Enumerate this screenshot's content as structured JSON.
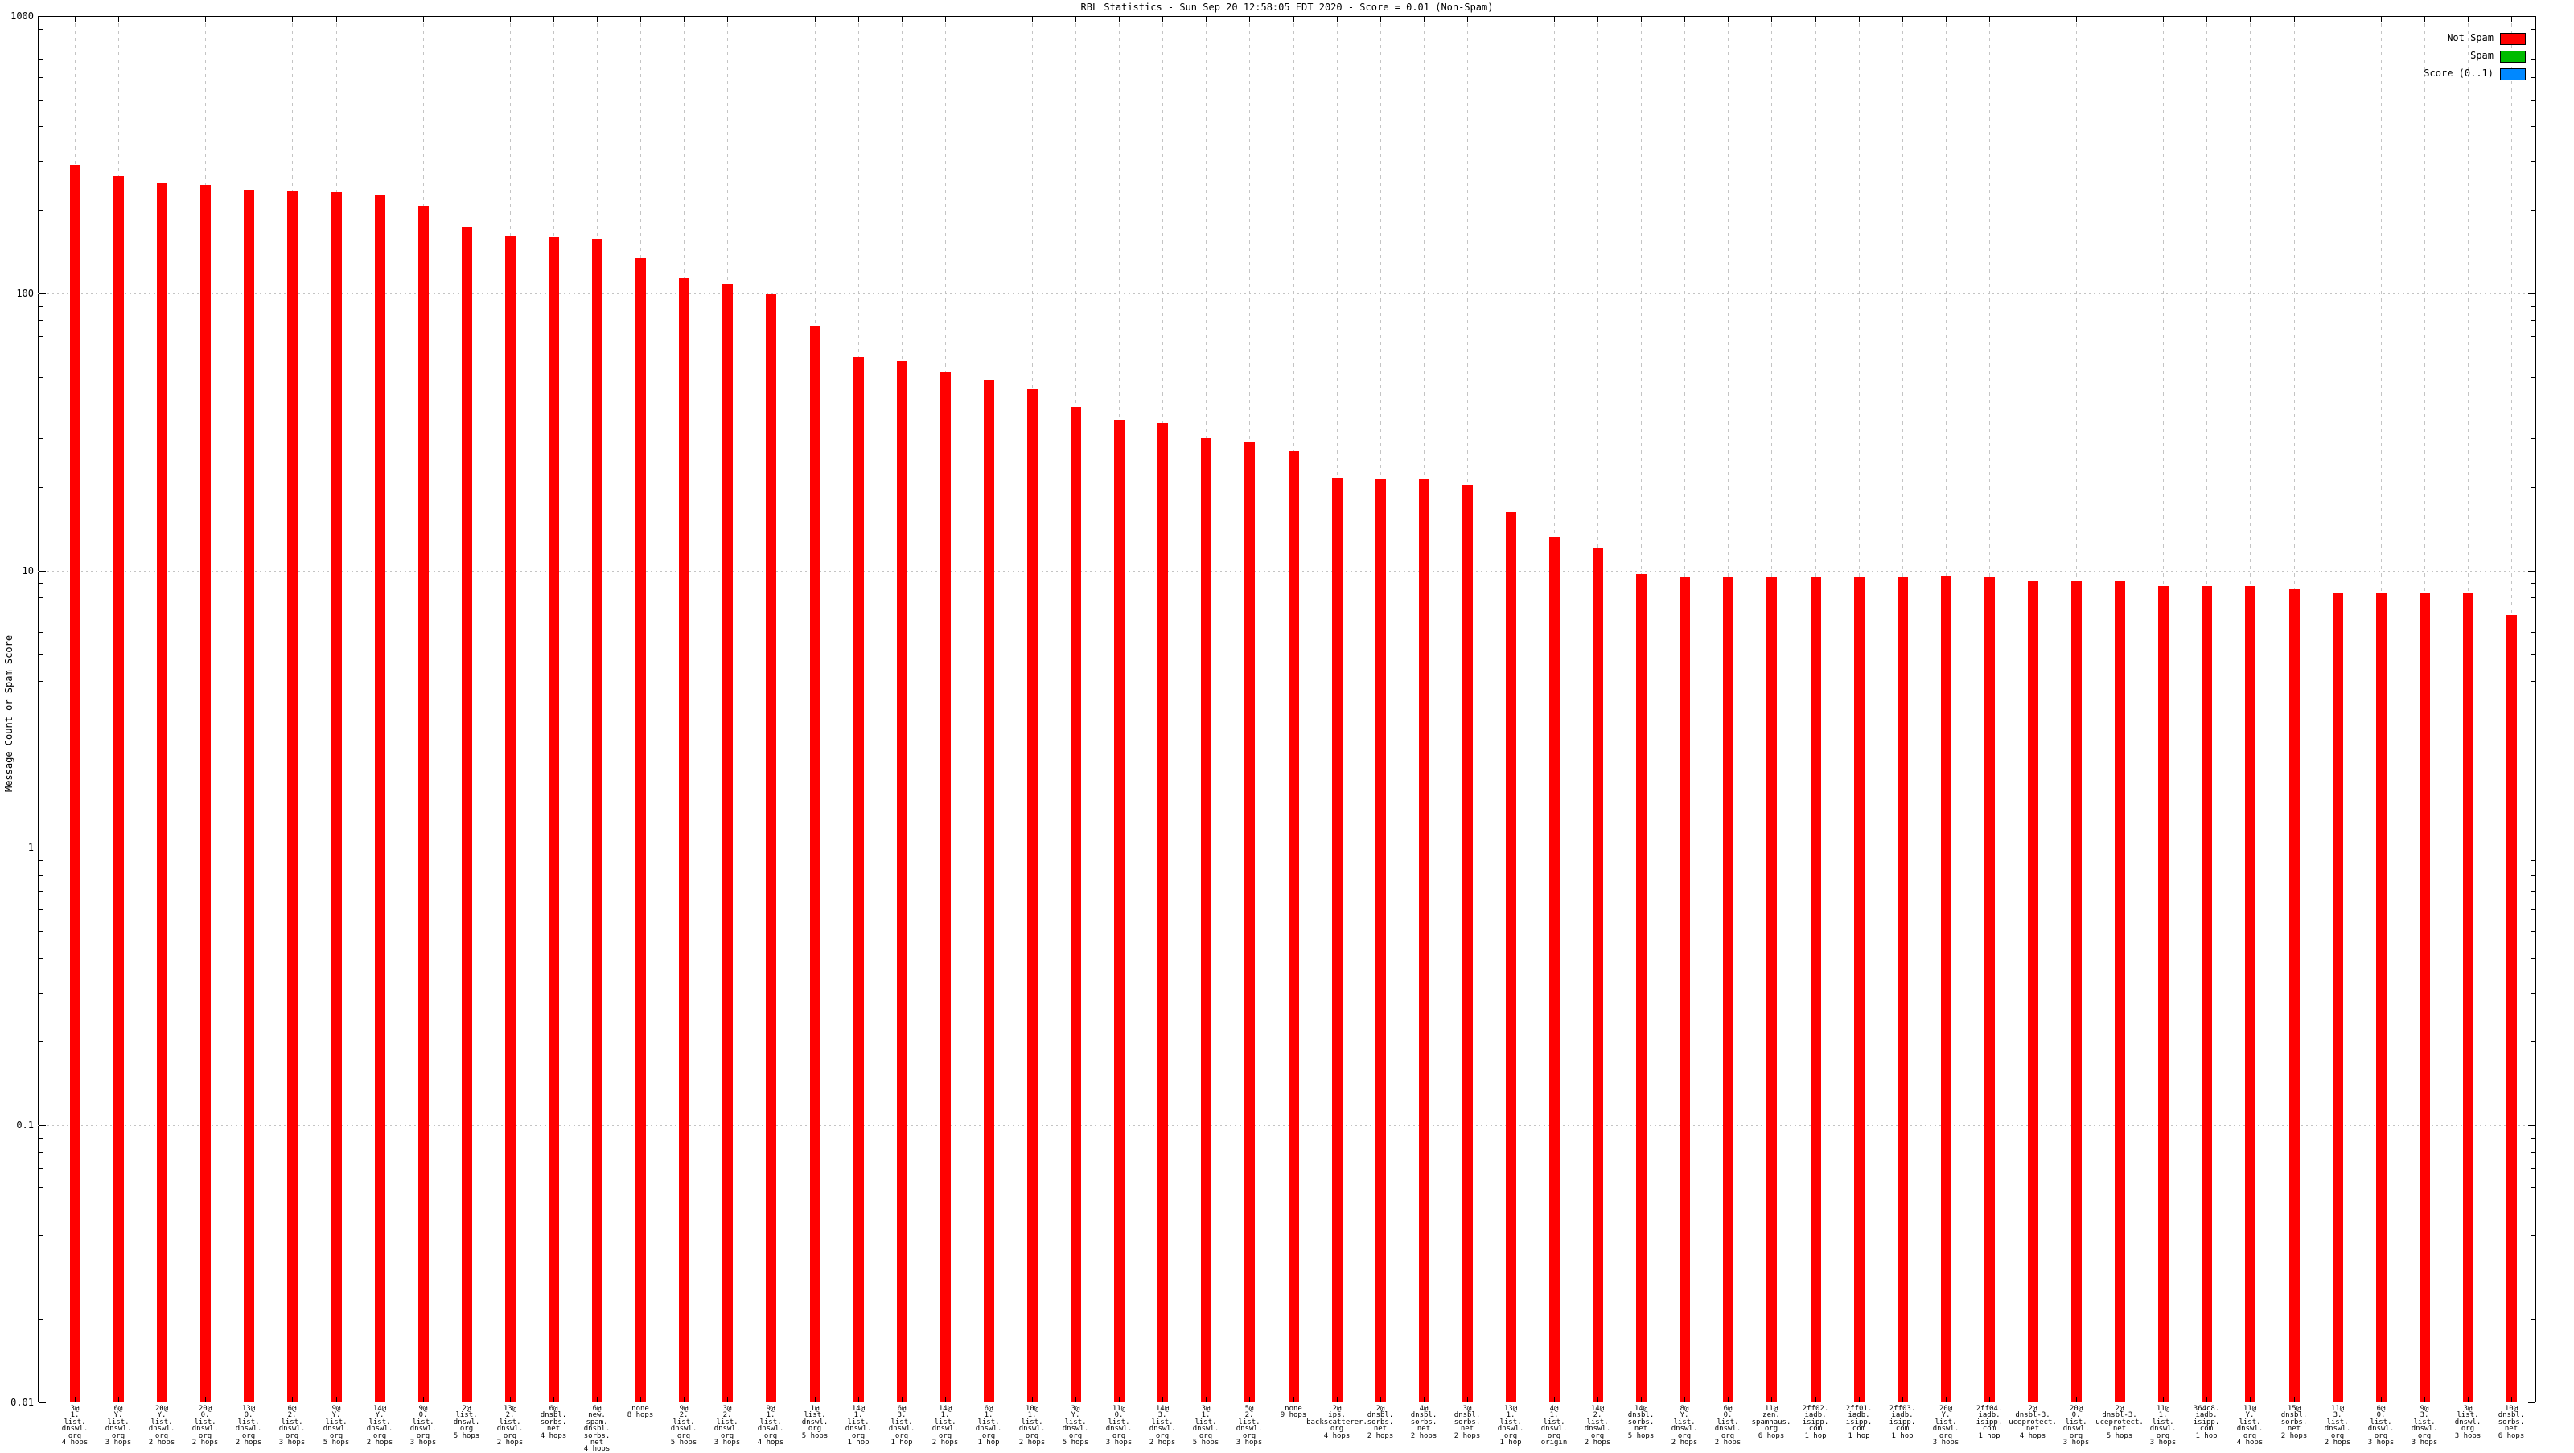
{
  "title": "RBL Statistics - Sun Sep 20 12:58:05 EDT 2020 - Score = 0.01 (Non-Spam)",
  "y_axis": {
    "label": "Message Count or Spam Score",
    "tick_labels": [
      "1000",
      "100",
      "10",
      "1",
      "0.1",
      "0.01"
    ]
  },
  "legend": {
    "position": "top-right",
    "items": [
      {
        "label": "Not Spam",
        "color": "#ff0000"
      },
      {
        "label": "Spam",
        "color": "#00bb00"
      },
      {
        "label": "Score (0..1)",
        "color": "#0088ff"
      }
    ]
  },
  "chart_data": {
    "type": "bar",
    "title": "RBL Statistics - Sun Sep 20 12:58:05 EDT 2020 - Score = 0.01 (Non-Spam)",
    "xlabel": "",
    "ylabel": "Message Count or Spam Score",
    "log_scale_y": true,
    "ylim": [
      0.01,
      1000
    ],
    "yticks": [
      1000,
      100,
      10,
      1,
      0.1,
      0.01
    ],
    "grid": true,
    "legend_position": "top-right",
    "bar_color": "#ff0000",
    "series_shown": "Not Spam",
    "categories": [
      [
        "3@",
        "1.",
        "list.",
        "dnswl.",
        "org",
        "4 hops"
      ],
      [
        "6@",
        "Y.",
        "list.",
        "dnswl.",
        "org",
        "3 hops"
      ],
      [
        "20@",
        "Y.",
        "list.",
        "dnswl.",
        "org",
        "2 hops"
      ],
      [
        "20@",
        "0.",
        "list.",
        "dnswl.",
        "org",
        "2 hops"
      ],
      [
        "13@",
        "0.",
        "list.",
        "dnswl.",
        "org",
        "2 hops"
      ],
      [
        "6@",
        "2.",
        "list.",
        "dnswl.",
        "org",
        "3 hops"
      ],
      [
        "9@",
        "Y.",
        "list.",
        "dnswl.",
        "org",
        "5 hops"
      ],
      [
        "14@",
        "Y.",
        "list.",
        "dnswl.",
        "org",
        "2 hops"
      ],
      [
        "9@",
        "0.",
        "list.",
        "dnswl.",
        "org",
        "3 hops"
      ],
      [
        "2@",
        "list.",
        "dnswl.",
        "org",
        "5 hops"
      ],
      [
        "13@",
        "2.",
        "list.",
        "dnswl.",
        "org",
        "2 hops"
      ],
      [
        "6@",
        "dnsbl.",
        "sorbs.",
        "net",
        "4 hops"
      ],
      [
        "6@",
        "new.",
        "spam.",
        "dnsbl.",
        "sorbs.",
        "net",
        "4 hops"
      ],
      [
        "none",
        "8 hops"
      ],
      [
        "9@",
        "2.",
        "list.",
        "dnswl.",
        "org",
        "5 hops"
      ],
      [
        "3@",
        "2.",
        "list.",
        "dnswl.",
        "org",
        "3 hops"
      ],
      [
        "9@",
        "1.",
        "list.",
        "dnswl.",
        "org",
        "4 hops"
      ],
      [
        "1@",
        "list.",
        "dnswl.",
        "org",
        "5 hops"
      ],
      [
        "14@",
        "1.",
        "list.",
        "dnswl.",
        "org",
        "1 hop"
      ],
      [
        "6@",
        "3.",
        "list.",
        "dnswl.",
        "org",
        "1 hop"
      ],
      [
        "14@",
        "1.",
        "list.",
        "dnswl.",
        "org",
        "2 hops"
      ],
      [
        "6@",
        "1.",
        "list.",
        "dnswl.",
        "org",
        "1 hop"
      ],
      [
        "10@",
        "1.",
        "list.",
        "dnswl.",
        "org",
        "2 hops"
      ],
      [
        "3@",
        "Y.",
        "list.",
        "dnswl.",
        "org",
        "5 hops"
      ],
      [
        "11@",
        "0.",
        "list.",
        "dnswl.",
        "org",
        "3 hops"
      ],
      [
        "14@",
        "3.",
        "list.",
        "dnswl.",
        "org",
        "2 hops"
      ],
      [
        "3@",
        "1.",
        "list.",
        "dnswl.",
        "org",
        "5 hops"
      ],
      [
        "5@",
        "2.",
        "list.",
        "dnswl.",
        "org",
        "3 hops"
      ],
      [
        "none",
        "9 hops"
      ],
      [
        "2@",
        "ips.",
        "backscatterer.",
        "org",
        "4 hops"
      ],
      [
        "2@",
        "dnsbl.",
        "sorbs.",
        "net",
        "2 hops"
      ],
      [
        "4@",
        "dnsbl.",
        "sorbs.",
        "net",
        "2 hops"
      ],
      [
        "3@",
        "dnsbl.",
        "sorbs.",
        "net",
        "2 hops"
      ],
      [
        "13@",
        "1.",
        "list.",
        "dnswl.",
        "org",
        "1 hop"
      ],
      [
        "4@",
        "1.",
        "list.",
        "dnswl.",
        "org",
        "origin"
      ],
      [
        "14@",
        "2.",
        "list.",
        "dnswl.",
        "org",
        "2 hops"
      ],
      [
        "14@",
        "dnsbl.",
        "sorbs.",
        "net",
        "5 hops"
      ],
      [
        "8@",
        "Y.",
        "list.",
        "dnswl.",
        "org",
        "2 hops"
      ],
      [
        "6@",
        "0.",
        "list.",
        "dnswl.",
        "org",
        "2 hops"
      ],
      [
        "11@",
        "zen.",
        "spamhaus.",
        "org",
        "6 hops"
      ],
      [
        "2ff02.",
        "iadb.",
        "isipp.",
        "com",
        "1 hop"
      ],
      [
        "2ff01.",
        "iadb.",
        "isipp.",
        "com",
        "1 hop"
      ],
      [
        "2ff03.",
        "iadb.",
        "isipp.",
        "com",
        "1 hop"
      ],
      [
        "20@",
        "Y.",
        "list.",
        "dnswl.",
        "org",
        "3 hops"
      ],
      [
        "2ff04.",
        "iadb.",
        "isipp.",
        "com",
        "1 hop"
      ],
      [
        "2@",
        "dnsbl-3.",
        "uceprotect.",
        "net",
        "4 hops"
      ],
      [
        "20@",
        "0.",
        "list.",
        "dnswl.",
        "org",
        "3 hops"
      ],
      [
        "2@",
        "dnsbl-3.",
        "uceprotect.",
        "net",
        "5 hops"
      ],
      [
        "11@",
        "1.",
        "list.",
        "dnswl.",
        "org",
        "3 hops"
      ],
      [
        "364c8.",
        "iadb.",
        "isipp.",
        "com",
        "1 hop"
      ],
      [
        "11@",
        "Y.",
        "list.",
        "dnswl.",
        "org",
        "4 hops"
      ],
      [
        "15@",
        "dnsbl.",
        "sorbs.",
        "net",
        "2 hops"
      ],
      [
        "11@",
        "3.",
        "list.",
        "dnswl.",
        "org",
        "2 hops"
      ],
      [
        "6@",
        "0.",
        "list.",
        "dnswl.",
        "org",
        "3 hops"
      ],
      [
        "9@",
        "3.",
        "list.",
        "dnswl.",
        "org",
        "3 hops"
      ],
      [
        "3@",
        "list.",
        "dnswl.",
        "org",
        "3 hops"
      ],
      [
        "10@",
        "dnsbl.",
        "sorbs.",
        "net",
        "6 hops"
      ]
    ],
    "values": [
      290,
      265,
      250,
      246,
      237,
      233,
      232,
      227,
      207,
      174,
      160,
      159,
      157,
      134,
      113,
      108,
      99,
      76,
      59,
      57,
      52,
      49,
      45,
      39,
      35,
      34,
      30,
      29,
      27,
      21.5,
      21.3,
      21.4,
      20.4,
      16.2,
      13.2,
      12.1,
      9.7,
      9.5,
      9.5,
      9.5,
      9.5,
      9.5,
      9.5,
      9.6,
      9.5,
      9.2,
      9.2,
      9.2,
      8.8,
      8.8,
      8.8,
      8.6,
      8.3,
      8.3,
      8.3,
      8.3,
      6.9
    ]
  }
}
